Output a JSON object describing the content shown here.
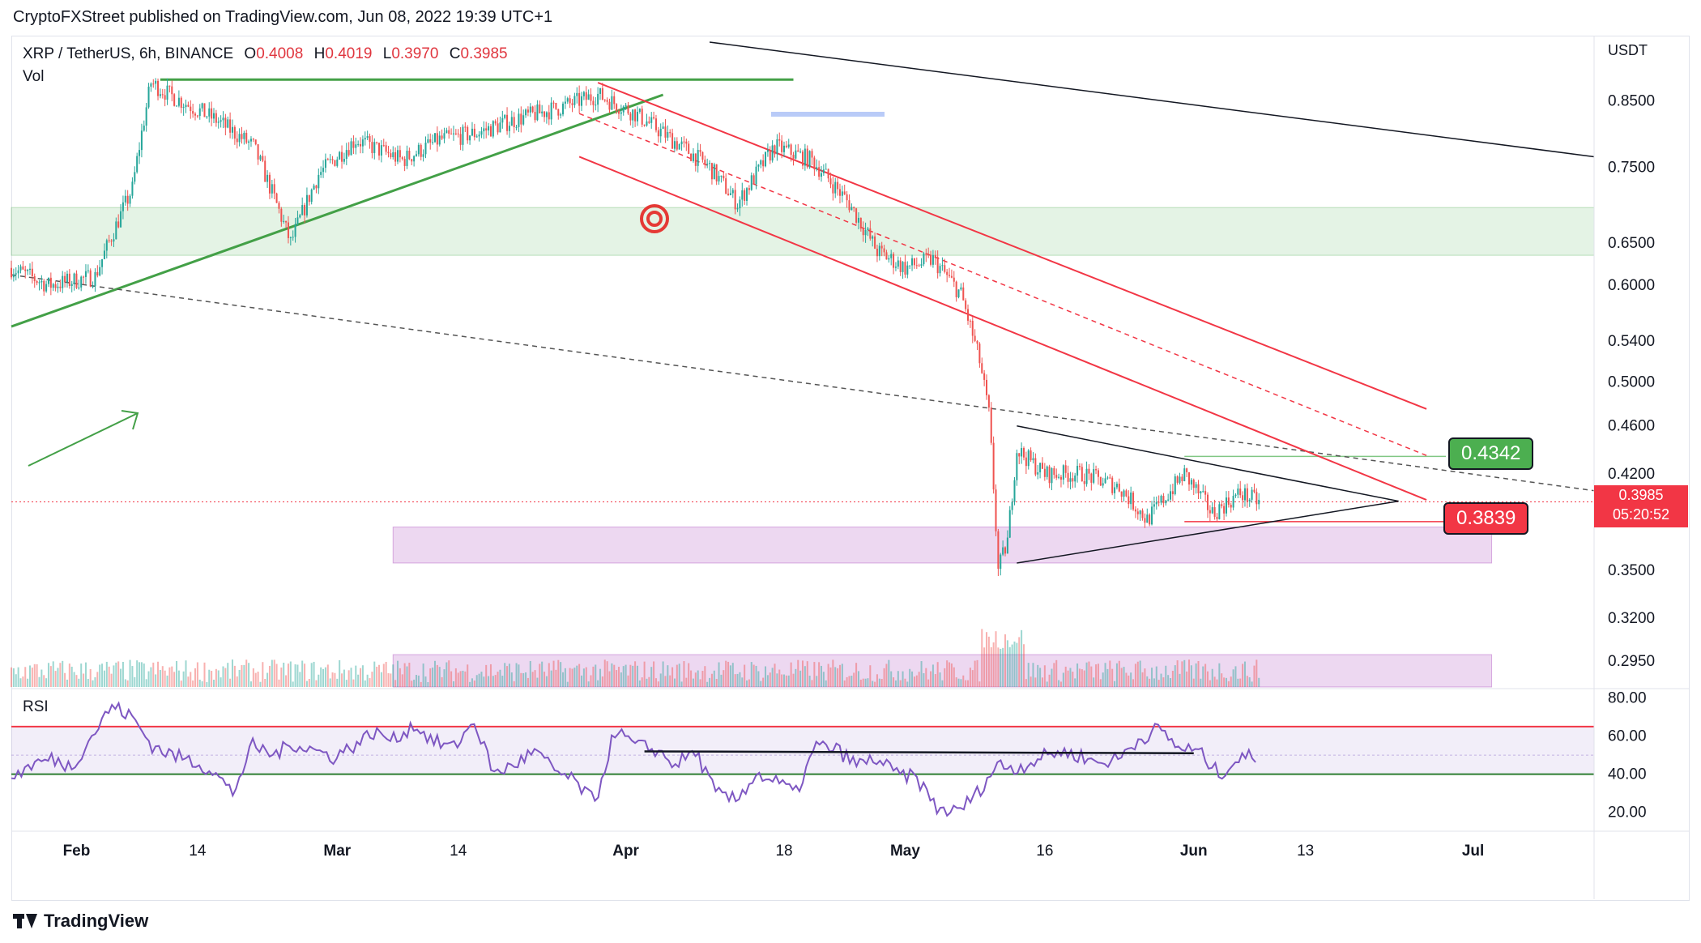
{
  "header": {
    "published": "CryptoFXStreet published on TradingView.com, Jun 08, 2022 19:39 UTC+1"
  },
  "legend": {
    "symbol": "XRP / TetherUS, 6h, BINANCE",
    "o_label": "O",
    "o": "0.4008",
    "h_label": "H",
    "h": "0.4019",
    "l_label": "L",
    "l": "0.3970",
    "c_label": "C",
    "c": "0.3985",
    "vol": "Vol"
  },
  "rsi_label": "RSI",
  "brand": "TradingView",
  "colors": {
    "up": "#26a69a",
    "down": "#ef5350",
    "rsi": "#7e57c2",
    "accent_green": "#4caf50",
    "accent_red": "#f23645"
  },
  "badges": {
    "resistance": "0.4342",
    "support": "0.3839"
  },
  "current_price": {
    "price": "0.3985",
    "countdown": "05:20:52"
  },
  "chart_data": [
    {
      "type": "candlestick",
      "title": "XRP / TetherUS, 6h, BINANCE",
      "ylabel": "USDT",
      "yscale": "log",
      "ylim": [
        0.28,
        0.95
      ],
      "ytick_labels": [
        "0.8500",
        "0.7500",
        "0.6500",
        "0.6000",
        "0.5400",
        "0.5000",
        "0.4600",
        "0.4200",
        "0.3500",
        "0.3200",
        "0.2950"
      ],
      "yticks": [
        0.85,
        0.75,
        0.65,
        0.6,
        0.54,
        0.5,
        0.46,
        0.42,
        0.35,
        0.32,
        0.295
      ],
      "xtick_labels": [
        "Feb",
        "14",
        "Mar",
        "14",
        "Apr",
        "18",
        "May",
        "16",
        "Jun",
        "13",
        "Jul"
      ],
      "xticks": [
        "2022-02-01",
        "2022-02-14",
        "2022-03-01",
        "2022-03-14",
        "2022-04-01",
        "2022-04-18",
        "2022-05-01",
        "2022-05-16",
        "2022-06-01",
        "2022-06-13",
        "2022-07-01"
      ],
      "xlim": [
        "2022-01-25",
        "2022-07-14"
      ],
      "price_path": [
        {
          "date": "2022-01-25",
          "close": 0.62
        },
        {
          "date": "2022-01-29",
          "close": 0.6
        },
        {
          "date": "2022-02-03",
          "close": 0.61
        },
        {
          "date": "2022-02-07",
          "close": 0.72
        },
        {
          "date": "2022-02-09",
          "close": 0.88
        },
        {
          "date": "2022-02-11",
          "close": 0.86
        },
        {
          "date": "2022-02-16",
          "close": 0.82
        },
        {
          "date": "2022-02-20",
          "close": 0.78
        },
        {
          "date": "2022-02-24",
          "close": 0.65
        },
        {
          "date": "2022-02-27",
          "close": 0.74
        },
        {
          "date": "2022-03-03",
          "close": 0.79
        },
        {
          "date": "2022-03-08",
          "close": 0.76
        },
        {
          "date": "2022-03-12",
          "close": 0.79
        },
        {
          "date": "2022-03-16",
          "close": 0.8
        },
        {
          "date": "2022-03-20",
          "close": 0.82
        },
        {
          "date": "2022-03-25",
          "close": 0.84
        },
        {
          "date": "2022-03-29",
          "close": 0.86
        },
        {
          "date": "2022-04-02",
          "close": 0.83
        },
        {
          "date": "2022-04-06",
          "close": 0.79
        },
        {
          "date": "2022-04-10",
          "close": 0.75
        },
        {
          "date": "2022-04-13",
          "close": 0.7
        },
        {
          "date": "2022-04-17",
          "close": 0.78
        },
        {
          "date": "2022-04-21",
          "close": 0.76
        },
        {
          "date": "2022-04-25",
          "close": 0.7
        },
        {
          "date": "2022-04-28",
          "close": 0.64
        },
        {
          "date": "2022-05-01",
          "close": 0.62
        },
        {
          "date": "2022-05-04",
          "close": 0.63
        },
        {
          "date": "2022-05-07",
          "close": 0.59
        },
        {
          "date": "2022-05-09",
          "close": 0.52
        },
        {
          "date": "2022-05-10",
          "close": 0.47
        },
        {
          "date": "2022-05-11",
          "close": 0.35
        },
        {
          "date": "2022-05-12",
          "close": 0.37
        },
        {
          "date": "2022-05-13",
          "close": 0.44
        },
        {
          "date": "2022-05-16",
          "close": 0.42
        },
        {
          "date": "2022-05-20",
          "close": 0.42
        },
        {
          "date": "2022-05-24",
          "close": 0.41
        },
        {
          "date": "2022-05-27",
          "close": 0.385
        },
        {
          "date": "2022-05-31",
          "close": 0.42
        },
        {
          "date": "2022-06-03",
          "close": 0.39
        },
        {
          "date": "2022-06-06",
          "close": 0.405
        },
        {
          "date": "2022-06-08",
          "close": 0.3985
        }
      ],
      "annotations": [
        {
          "type": "zone",
          "color": "green",
          "ymin": 0.635,
          "ymax": 0.695,
          "x0": "2022-01-25",
          "x1": "2022-07-14"
        },
        {
          "type": "zone",
          "color": "purple",
          "ymin": 0.355,
          "ymax": 0.38,
          "x0": "2022-03-07",
          "x1": "2022-07-03"
        },
        {
          "type": "hline",
          "label": "0.4342",
          "y": 0.4342,
          "color": "green"
        },
        {
          "type": "hline",
          "label": "0.3839",
          "y": 0.3839,
          "color": "red"
        }
      ]
    },
    {
      "type": "line",
      "title": "RSI",
      "ylim": [
        10,
        85
      ],
      "ytick_labels": [
        "80.00",
        "60.00",
        "40.00",
        "20.00"
      ],
      "yticks": [
        80,
        60,
        40,
        20
      ],
      "levels": [
        40,
        50,
        65
      ],
      "series": [
        {
          "values": [
            38,
            45,
            48,
            44,
            60,
            76,
            70,
            55,
            50,
            47,
            42,
            30,
            55,
            50,
            56,
            53,
            49,
            55,
            62,
            58,
            66,
            57,
            54,
            68,
            40,
            45,
            52,
            42,
            36,
            25,
            63,
            55,
            53,
            45,
            52,
            30,
            26,
            40,
            36,
            30,
            55,
            53,
            45,
            48,
            40,
            38,
            22,
            20,
            30,
            45,
            43,
            48,
            52,
            50,
            46,
            48,
            58,
            64,
            54,
            52,
            40,
            48,
            50
          ]
        }
      ]
    },
    {
      "type": "bar",
      "title": "Vol",
      "series": [
        {
          "values": []
        }
      ]
    }
  ]
}
